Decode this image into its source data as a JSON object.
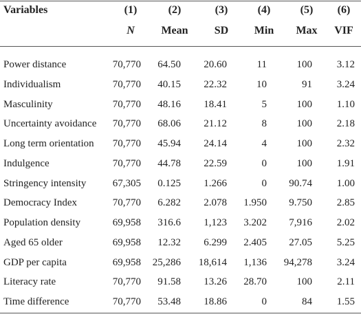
{
  "table": {
    "header": {
      "first": "Variables",
      "columns": [
        {
          "number": "(1)",
          "label": "N"
        },
        {
          "number": "(2)",
          "label": "Mean"
        },
        {
          "number": "(3)",
          "label": "SD"
        },
        {
          "number": "(4)",
          "label": "Min"
        },
        {
          "number": "(5)",
          "label": "Max"
        },
        {
          "number": "(6)",
          "label": "VIF"
        }
      ]
    },
    "rows": [
      {
        "variable": "Power distance",
        "values": [
          "70,770",
          "64.50",
          "20.60",
          "11",
          "100",
          "3.12"
        ]
      },
      {
        "variable": "Individualism",
        "values": [
          "70,770",
          "40.15",
          "22.32",
          "10",
          "91",
          "3.24"
        ]
      },
      {
        "variable": "Masculinity",
        "values": [
          "70,770",
          "48.16",
          "18.41",
          "5",
          "100",
          "1.10"
        ]
      },
      {
        "variable": "Uncertainty avoidance",
        "values": [
          "70,770",
          "68.06",
          "21.12",
          "8",
          "100",
          "2.18"
        ]
      },
      {
        "variable": "Long term orientation",
        "values": [
          "70,770",
          "45.94",
          "24.14",
          "4",
          "100",
          "2.32"
        ]
      },
      {
        "variable": "Indulgence",
        "values": [
          "70,770",
          "44.78",
          "22.59",
          "0",
          "100",
          "1.91"
        ]
      },
      {
        "variable": "Stringency intensity",
        "values": [
          "67,305",
          "0.125",
          "1.266",
          "0",
          "90.74",
          "1.00"
        ]
      },
      {
        "variable": "Democracy Index",
        "values": [
          "70,770",
          "6.282",
          "2.078",
          "1.950",
          "9.750",
          "2.85"
        ]
      },
      {
        "variable": "Population density",
        "values": [
          "69,958",
          "316.6",
          "1,123",
          "3.202",
          "7,916",
          "2.02"
        ]
      },
      {
        "variable": "Aged 65 older",
        "values": [
          "69,958",
          "12.32",
          "6.299",
          "2.405",
          "27.05",
          "5.25"
        ]
      },
      {
        "variable": "GDP per capita",
        "values": [
          "69,958",
          "25,286",
          "18,614",
          "1,136",
          "94,278",
          "3.24"
        ]
      },
      {
        "variable": "Literacy rate",
        "values": [
          "70,770",
          "91.58",
          "13.26",
          "28.70",
          "100",
          "2.11"
        ]
      },
      {
        "variable": "Time difference",
        "values": [
          "70,770",
          "53.48",
          "18.86",
          "0",
          "84",
          "1.55"
        ]
      }
    ]
  }
}
